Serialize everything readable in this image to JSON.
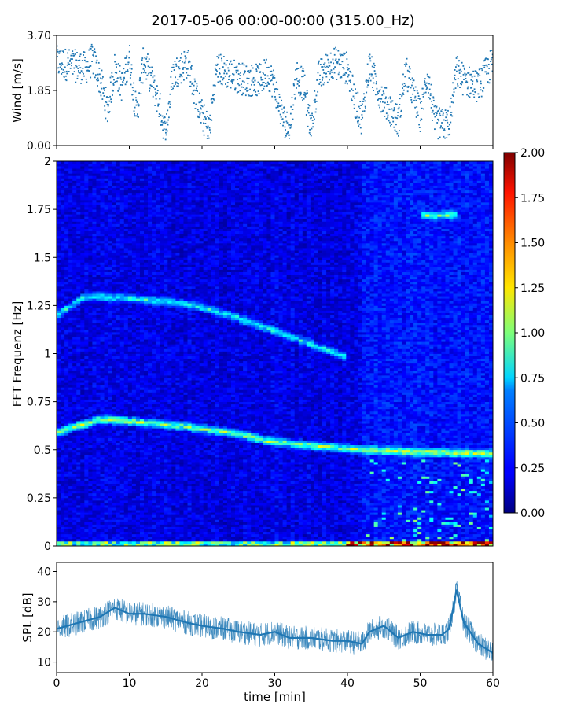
{
  "figure": {
    "title": "2017-05-06 00:00-00:00 (315.00_Hz)",
    "xlabel": "time [min]"
  },
  "chart_data": [
    {
      "type": "scatter",
      "ylabel": "Wind [m/s]",
      "xlim": [
        0,
        60
      ],
      "ylim": [
        0,
        3.7
      ],
      "yticks": [
        "0.00",
        "1.85",
        "3.70"
      ],
      "x_tick_labels_shown": false,
      "color": "#1f77b4",
      "trend": {
        "x": [
          0,
          2,
          4,
          5,
          6,
          7,
          8,
          9,
          10,
          11,
          12,
          13,
          14,
          15,
          16,
          17,
          18,
          19,
          20,
          21,
          22,
          24,
          26,
          28,
          29,
          30,
          31,
          32,
          33,
          34,
          35,
          36,
          38,
          40,
          41,
          42,
          43,
          44,
          45,
          46,
          47,
          48,
          49,
          50,
          51,
          52,
          53,
          54,
          55,
          56,
          58,
          60
        ],
        "y": [
          2.8,
          2.7,
          2.6,
          2.9,
          2.2,
          1.2,
          2.6,
          2.0,
          3.0,
          1.0,
          2.9,
          2.2,
          1.5,
          0.4,
          2.4,
          2.6,
          2.8,
          1.8,
          1.0,
          0.5,
          2.6,
          2.4,
          2.2,
          2.2,
          2.5,
          2.0,
          1.0,
          0.5,
          2.4,
          2.0,
          0.5,
          2.3,
          2.8,
          2.6,
          1.5,
          0.9,
          2.7,
          2.0,
          1.5,
          1.2,
          0.8,
          2.5,
          1.8,
          1.0,
          2.4,
          0.8,
          0.7,
          0.7,
          2.5,
          2.2,
          2.0,
          2.8
        ]
      }
    },
    {
      "type": "heatmap",
      "ylabel": "FFT Frequenz [Hz]",
      "xlim": [
        0,
        60
      ],
      "ylim": [
        0,
        2
      ],
      "yticks": [
        "0",
        "0.25",
        "0.5",
        "0.75",
        "1",
        "1.25",
        "1.5",
        "1.75",
        "2"
      ],
      "colormap": "jet",
      "colorbar": {
        "range": [
          0,
          2
        ],
        "ticks": [
          "0.00",
          "0.25",
          "0.50",
          "0.75",
          "1.00",
          "1.25",
          "1.50",
          "1.75",
          "2.00"
        ]
      },
      "background_level": 0.2,
      "ridges": [
        {
          "x": [
            0,
            6,
            10,
            18,
            24,
            30,
            36,
            42,
            50,
            60
          ],
          "freq": [
            0.59,
            0.66,
            0.65,
            0.62,
            0.59,
            0.54,
            0.52,
            0.5,
            0.49,
            0.48
          ],
          "level": 0.9
        },
        {
          "x": [
            0,
            4,
            10,
            18,
            24,
            30,
            35,
            40
          ],
          "freq": [
            1.2,
            1.3,
            1.29,
            1.26,
            1.2,
            1.12,
            1.05,
            0.98
          ],
          "level": 0.6
        },
        {
          "x": [
            50,
            55
          ],
          "freq": [
            1.72,
            1.72
          ],
          "level": 0.7
        }
      ],
      "low_frequency_band": {
        "freq": [
          0,
          0.03
        ],
        "level": 1.4
      }
    },
    {
      "type": "line",
      "ylabel": "SPL [dB]",
      "xlim": [
        0,
        60
      ],
      "ylim": [
        6.5,
        43
      ],
      "yticks": [
        "10",
        "20",
        "30",
        "40"
      ],
      "xticks": [
        "0",
        "10",
        "20",
        "30",
        "40",
        "50",
        "60"
      ],
      "color": "#1f77b4",
      "x": [
        0,
        3,
        6,
        8,
        10,
        12,
        15,
        18,
        20,
        23,
        25,
        28,
        30,
        32,
        35,
        38,
        40,
        42,
        43,
        45,
        47,
        49,
        51,
        53,
        54,
        55,
        56,
        58,
        60
      ],
      "y": [
        21,
        23,
        25,
        28,
        26,
        26,
        25,
        23,
        22,
        21,
        20,
        19,
        20,
        18,
        18,
        17,
        17,
        16,
        20,
        22,
        18,
        20,
        19,
        19,
        21,
        34,
        23,
        16,
        13
      ],
      "band": 4
    }
  ]
}
